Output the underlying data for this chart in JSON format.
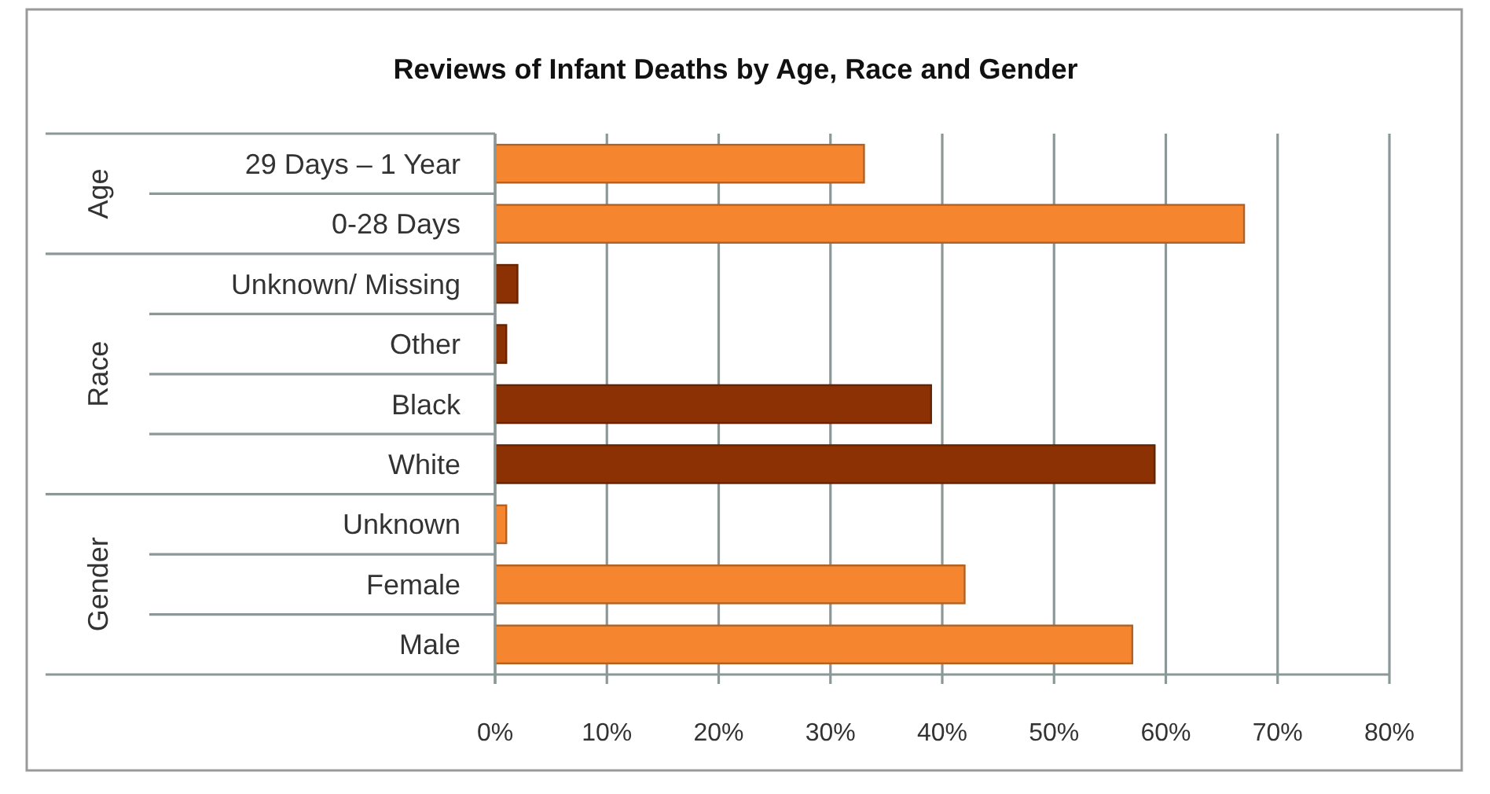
{
  "chart_data": {
    "type": "bar",
    "orientation": "horizontal",
    "title": "Reviews of Infant Deaths by Age, Race and Gender",
    "categories": [
      "29 Days – 1 Year",
      "0-28 Days",
      "Unknown/ Missing",
      "Other",
      "Black",
      "White",
      "Unknown",
      "Female",
      "Male"
    ],
    "series": [
      {
        "name": "Age",
        "color": "#f5862f",
        "values": [
          33,
          67,
          null,
          null,
          null,
          null,
          null,
          null,
          null
        ]
      },
      {
        "name": "Race",
        "color": "#8b3103",
        "values": [
          null,
          null,
          2,
          1,
          39,
          59,
          null,
          null,
          null
        ]
      },
      {
        "name": "Gender",
        "color": "#f5862f",
        "values": [
          null,
          null,
          null,
          null,
          null,
          null,
          1,
          42,
          57
        ]
      }
    ],
    "xlim": [
      0,
      80
    ],
    "xticks": [
      {
        "value": 0,
        "label": "0%"
      },
      {
        "value": 10,
        "label": "10%"
      },
      {
        "value": 20,
        "label": "20%"
      },
      {
        "value": 30,
        "label": "30%"
      },
      {
        "value": 40,
        "label": "40%"
      },
      {
        "value": 50,
        "label": "50%"
      },
      {
        "value": 60,
        "label": "60%"
      },
      {
        "value": 70,
        "label": "70%"
      },
      {
        "value": 80,
        "label": "80%"
      }
    ],
    "grid": "x"
  }
}
